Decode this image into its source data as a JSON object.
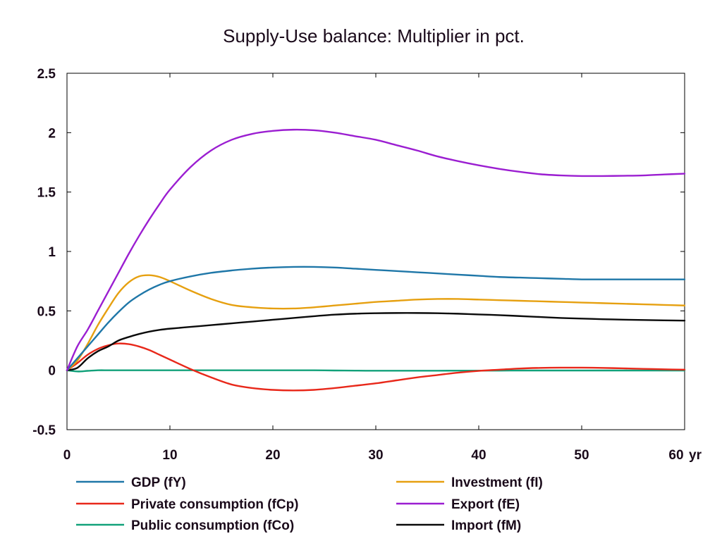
{
  "chart_data": {
    "type": "line",
    "title": "Supply-Use balance: Multiplier in pct.",
    "xlabel": "",
    "ylabel": "",
    "x_unit_label": "yr",
    "xlim": [
      0,
      60
    ],
    "ylim": [
      -0.5,
      2.5
    ],
    "x_ticks": [
      "0",
      "10",
      "20",
      "30",
      "40",
      "50",
      "60"
    ],
    "y_ticks": [
      "-0.5",
      "0",
      "0.5",
      "1",
      "1.5",
      "2",
      "2.5"
    ],
    "grid": false,
    "legend_position": "bottom",
    "x": [
      0,
      1,
      2,
      3,
      4,
      5,
      6,
      7,
      8,
      9,
      10,
      12,
      14,
      16,
      18,
      20,
      22,
      24,
      26,
      28,
      30,
      32,
      34,
      36,
      38,
      40,
      42,
      44,
      46,
      48,
      50,
      52,
      54,
      56,
      58,
      60
    ],
    "series": [
      {
        "name": "GDP (fY)",
        "color": "#1f77a8",
        "values": [
          0,
          0.1,
          0.2,
          0.3,
          0.4,
          0.49,
          0.57,
          0.63,
          0.68,
          0.72,
          0.75,
          0.79,
          0.82,
          0.84,
          0.855,
          0.865,
          0.87,
          0.87,
          0.865,
          0.855,
          0.845,
          0.835,
          0.825,
          0.815,
          0.805,
          0.795,
          0.785,
          0.78,
          0.775,
          0.77,
          0.765,
          0.765,
          0.765,
          0.765,
          0.765,
          0.765
        ]
      },
      {
        "name": "Private consumption (fCp)",
        "color": "#e8281a",
        "values": [
          0,
          0.06,
          0.13,
          0.18,
          0.21,
          0.225,
          0.22,
          0.2,
          0.17,
          0.13,
          0.09,
          0.01,
          -0.06,
          -0.12,
          -0.15,
          -0.165,
          -0.17,
          -0.165,
          -0.15,
          -0.13,
          -0.11,
          -0.085,
          -0.06,
          -0.04,
          -0.02,
          -0.005,
          0.005,
          0.015,
          0.02,
          0.022,
          0.022,
          0.02,
          0.016,
          0.012,
          0.008,
          0.005
        ]
      },
      {
        "name": "Public consumption (fCo)",
        "color": "#12a17a",
        "values": [
          0,
          -0.01,
          -0.005,
          0,
          0,
          0,
          0,
          0,
          0,
          0,
          0,
          0,
          0,
          0,
          0,
          0,
          0,
          0,
          -0.002,
          -0.003,
          -0.004,
          -0.004,
          -0.004,
          -0.004,
          -0.003,
          -0.003,
          -0.003,
          -0.002,
          -0.002,
          -0.002,
          -0.002,
          -0.002,
          -0.002,
          -0.002,
          -0.002,
          -0.002
        ]
      },
      {
        "name": "Investment (fI)",
        "color": "#e6a010",
        "values": [
          0,
          0.08,
          0.22,
          0.38,
          0.52,
          0.65,
          0.74,
          0.79,
          0.8,
          0.785,
          0.75,
          0.67,
          0.6,
          0.55,
          0.53,
          0.52,
          0.52,
          0.53,
          0.545,
          0.56,
          0.575,
          0.585,
          0.595,
          0.6,
          0.6,
          0.595,
          0.59,
          0.585,
          0.58,
          0.575,
          0.57,
          0.565,
          0.56,
          0.555,
          0.55,
          0.545
        ]
      },
      {
        "name": "Export (fE)",
        "color": "#9b1ed1",
        "values": [
          0,
          0.2,
          0.34,
          0.5,
          0.66,
          0.82,
          0.98,
          1.13,
          1.27,
          1.4,
          1.52,
          1.71,
          1.85,
          1.94,
          1.99,
          2.015,
          2.025,
          2.02,
          2.0,
          1.97,
          1.94,
          1.895,
          1.85,
          1.8,
          1.76,
          1.725,
          1.695,
          1.67,
          1.65,
          1.64,
          1.635,
          1.635,
          1.637,
          1.64,
          1.648,
          1.655
        ]
      },
      {
        "name": "Import (fM)",
        "color": "#0a0a0a",
        "values": [
          0,
          0.02,
          0.1,
          0.16,
          0.2,
          0.25,
          0.28,
          0.305,
          0.325,
          0.34,
          0.35,
          0.365,
          0.38,
          0.395,
          0.41,
          0.425,
          0.44,
          0.455,
          0.468,
          0.476,
          0.48,
          0.482,
          0.482,
          0.48,
          0.476,
          0.47,
          0.464,
          0.456,
          0.448,
          0.44,
          0.435,
          0.43,
          0.426,
          0.423,
          0.42,
          0.418
        ]
      }
    ]
  }
}
